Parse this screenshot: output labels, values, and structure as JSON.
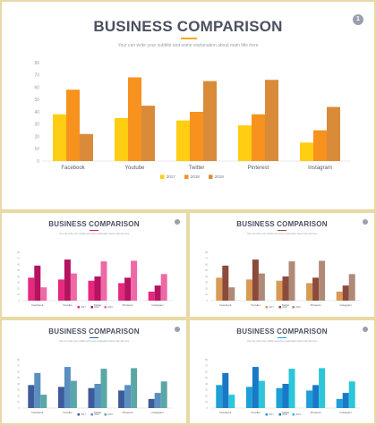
{
  "slides": [
    {
      "title": "BUSINESS COMPARISON",
      "subtitle": "Your can write your subtitle and some explanation about main title here",
      "page_number": "1",
      "colors": [
        "#ffce12",
        "#f7921e",
        "#d98b3a"
      ]
    },
    {
      "title": "BUSINESS COMPARISON",
      "subtitle": "Your can write your subtitle and some explanation about main title here",
      "colors": [
        "#e6287f",
        "#b5135f",
        "#ee6aa6"
      ]
    },
    {
      "title": "BUSINESS COMPARISON",
      "subtitle": "Your can write your subtitle and some explanation about main title here",
      "colors": [
        "#d99a55",
        "#8c4a3a",
        "#b08a78"
      ]
    },
    {
      "title": "BUSINESS COMPARISON",
      "subtitle": "Your can write your subtitle and some explanation about main title here",
      "colors": [
        "#3d5b9a",
        "#5a8fc0",
        "#5aa7a8"
      ]
    },
    {
      "title": "BUSINESS COMPARISON",
      "subtitle": "Your can write your subtitle and some explanation about main title here",
      "colors": [
        "#1f9fd9",
        "#1a78c6",
        "#2bc6d9"
      ]
    }
  ],
  "chart_data": {
    "type": "bar",
    "categories": [
      "Facebook",
      "Youtube",
      "Twitter",
      "Pinterest",
      "Instagram"
    ],
    "series": [
      {
        "name": "2017",
        "values": [
          38,
          35,
          33,
          29,
          15
        ]
      },
      {
        "name": "2018",
        "values": [
          58,
          68,
          40,
          38,
          25
        ]
      },
      {
        "name": "2019",
        "values": [
          22,
          45,
          65,
          66,
          44
        ]
      }
    ],
    "ylim": [
      0,
      80
    ],
    "yticks": [
      0,
      10,
      20,
      30,
      40,
      50,
      60,
      70,
      80
    ],
    "grid": false,
    "legend": "bottom-center"
  }
}
